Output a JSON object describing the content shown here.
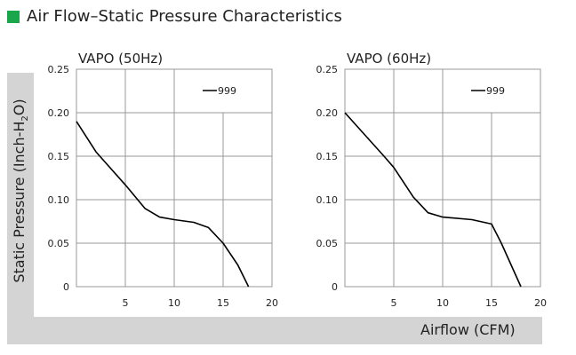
{
  "title": "Air Flow–Static Pressure Characteristics",
  "colors": {
    "accent": "#1aa64b",
    "band": "#d4d4d4"
  },
  "chart_data": [
    {
      "type": "line",
      "title": "VAPO (50Hz)",
      "xlabel": "Airflow (CFM)",
      "ylabel": "Static Pressure (Inch-H2O)",
      "xlim": [
        0,
        20
      ],
      "ylim": [
        0,
        0.25
      ],
      "xticks": [
        "5",
        "10",
        "15",
        "20"
      ],
      "yticks": [
        "0",
        "0.05",
        "0.10",
        "0.15",
        "0.20",
        "0.25"
      ],
      "grid": true,
      "legend": "top-right",
      "series": [
        {
          "name": "999",
          "x": [
            0,
            2,
            5,
            7,
            8.5,
            10,
            12,
            13.5,
            15,
            16.5,
            17.6
          ],
          "y": [
            0.19,
            0.155,
            0.117,
            0.09,
            0.08,
            0.077,
            0.074,
            0.068,
            0.05,
            0.025,
            0
          ]
        }
      ]
    },
    {
      "type": "line",
      "title": "VAPO (60Hz)",
      "xlabel": "Airflow (CFM)",
      "ylabel": "Static Pressure (Inch-H2O)",
      "xlim": [
        0,
        20
      ],
      "ylim": [
        0,
        0.25
      ],
      "xticks": [
        "5",
        "10",
        "15",
        "20"
      ],
      "yticks": [
        "0",
        "0.05",
        "0.10",
        "0.15",
        "0.20",
        "0.25"
      ],
      "grid": true,
      "legend": "top-right",
      "series": [
        {
          "name": "999",
          "x": [
            0,
            2,
            4,
            5,
            7,
            8.5,
            10,
            13,
            15,
            16,
            18
          ],
          "y": [
            0.2,
            0.175,
            0.15,
            0.137,
            0.103,
            0.085,
            0.08,
            0.077,
            0.072,
            0.05,
            0
          ]
        }
      ]
    }
  ],
  "axis": {
    "ylabel_main": "Static Pressure (Inch-H",
    "ylabel_sub": "2",
    "ylabel_end": "O)",
    "xlabel": "Airflow (CFM)"
  }
}
